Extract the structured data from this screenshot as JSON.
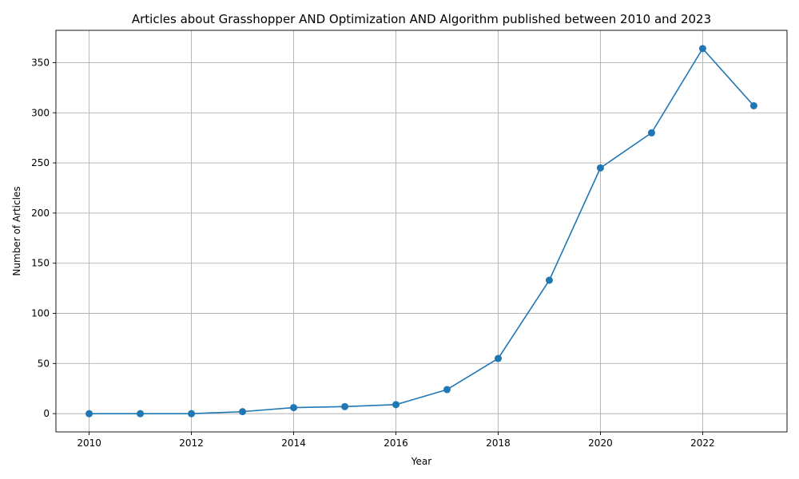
{
  "chart_data": {
    "type": "line",
    "title": "Articles about Grasshopper AND Optimization AND Algorithm published between 2010 and 2023",
    "xlabel": "Year",
    "ylabel": "Number of Articles",
    "x": [
      2010,
      2011,
      2012,
      2013,
      2014,
      2015,
      2016,
      2017,
      2018,
      2019,
      2020,
      2021,
      2022,
      2023
    ],
    "series": [
      {
        "values": [
          0,
          0,
          0,
          2,
          6,
          7,
          9,
          24,
          55,
          133,
          245,
          280,
          364,
          307
        ],
        "color": "#1f77b4",
        "marker": "circle"
      }
    ],
    "xlim": [
      2009.35,
      2023.65
    ],
    "ylim": [
      -18.2,
      382.2
    ],
    "xticks": [
      2010,
      2012,
      2014,
      2016,
      2018,
      2020,
      2022
    ],
    "yticks": [
      0,
      50,
      100,
      150,
      200,
      250,
      300,
      350
    ],
    "grid": true,
    "legend": "none"
  }
}
